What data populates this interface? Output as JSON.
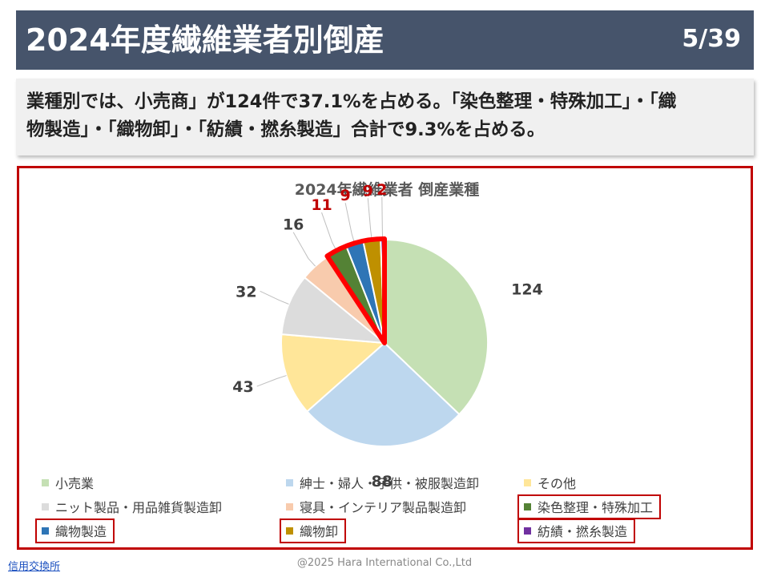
{
  "header": {
    "title": "2024年度繊維業者別倒産",
    "page": "5/39"
  },
  "summary": {
    "line1": "業種別では、小売商」が124件で37.1%を占める。「染色整理・特殊加工」・「織",
    "line2": "物製造」・「織物卸」・「紡績・撚糸製造」合計で9.3%を占める。"
  },
  "chart_data": {
    "type": "pie",
    "title": "2024年繊維業者 倒産業種",
    "categories": [
      "小売業",
      "紳士・婦人・子供・被服製造卸",
      "その他",
      "ニット製品・用品雑貨製造卸",
      "寝具・インテリア製品製造卸",
      "染色整理・特殊加工",
      "織物製造",
      "織物卸",
      "紡績・撚糸製造"
    ],
    "values": [
      124,
      88,
      43,
      32,
      16,
      11,
      9,
      9,
      2
    ],
    "colors": [
      "#c5e0b4",
      "#bdd7ee",
      "#ffe699",
      "#dcdcdc",
      "#f8cbad",
      "#548235",
      "#2e75b6",
      "#bf9000",
      "#7030a0"
    ],
    "label_colors": [
      "#404040",
      "#404040",
      "#404040",
      "#404040",
      "#404040",
      "#c00000",
      "#c00000",
      "#c00000",
      "#c00000"
    ],
    "highlighted": [
      "染色整理・特殊加工",
      "織物製造",
      "織物卸",
      "紡績・撚糸製造"
    ],
    "start_angle_deg": 0,
    "direction": "clockwise",
    "legend_position": "bottom"
  },
  "footer": {
    "link": "信用交換所",
    "copyright": "@2025 Hara International Co.,Ltd"
  }
}
